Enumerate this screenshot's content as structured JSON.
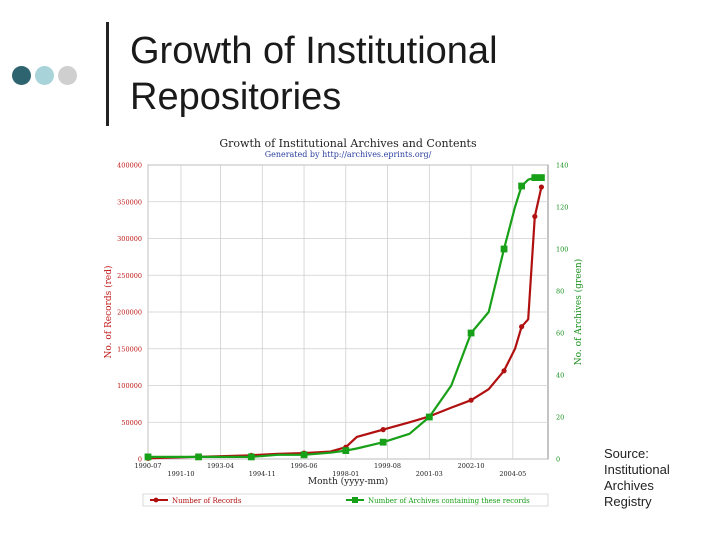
{
  "slide": {
    "title": "Growth of Institutional Repositories",
    "source_label": "Source:",
    "source_lines": [
      "Institutional",
      "Archives",
      "Registry"
    ],
    "accent_colors": [
      "#2e6470",
      "#a7d3d9",
      "#cfcfcf"
    ]
  },
  "chart_data": {
    "type": "line",
    "title": "Growth of Institutional Archives and Contents",
    "subtitle": "Generated by http://archives.eprints.org/",
    "xlabel": "Month (yyyy-mm)",
    "x_ticks": [
      "1990-07",
      "1991-10",
      "1993-04",
      "1994-11",
      "1996-06",
      "1998-01",
      "1999-08",
      "2001-03",
      "2002-10",
      "2004-05"
    ],
    "ylabel_left": "No. of Records (red)",
    "ylabel_right": "No. of Archives (green)",
    "y_left_ticks": [
      0,
      50000,
      100000,
      150000,
      200000,
      250000,
      300000,
      350000,
      400000
    ],
    "y_right_ticks": [
      0,
      20,
      40,
      60,
      80,
      100,
      120,
      140
    ],
    "y_left_lim": [
      0,
      400000
    ],
    "y_right_lim": [
      0,
      140
    ],
    "grid": true,
    "legend_position": "bottom",
    "series": [
      {
        "name": "Number of Records",
        "axis": "left",
        "color": "#b01010",
        "x": [
          "1990-07",
          "1991-06",
          "1992-06",
          "1993-06",
          "1994-06",
          "1995-06",
          "1996-06",
          "1997-06",
          "1998-01",
          "1998-06",
          "1999-06",
          "2000-06",
          "2001-03",
          "2002-01",
          "2002-10",
          "2003-06",
          "2004-01",
          "2004-06",
          "2004-09",
          "2004-12",
          "2005-03",
          "2005-06"
        ],
        "values": [
          1000,
          2000,
          3000,
          4000,
          5000,
          7000,
          8000,
          10000,
          16000,
          30000,
          40000,
          50000,
          58000,
          70000,
          80000,
          95000,
          120000,
          150000,
          180000,
          190000,
          330000,
          370000
        ]
      },
      {
        "name": "Number of Archives containing these records",
        "axis": "right",
        "color": "#18a018",
        "x": [
          "1990-07",
          "1991-06",
          "1992-06",
          "1993-06",
          "1994-06",
          "1995-06",
          "1996-06",
          "1997-06",
          "1998-01",
          "1998-06",
          "1999-06",
          "2000-06",
          "2001-03",
          "2002-01",
          "2002-10",
          "2003-06",
          "2004-01",
          "2004-06",
          "2004-09",
          "2004-12",
          "2005-03",
          "2005-06"
        ],
        "values": [
          1,
          1,
          1,
          1,
          1,
          2,
          2,
          3,
          4,
          5,
          8,
          12,
          20,
          35,
          60,
          70,
          100,
          120,
          130,
          133,
          134,
          134
        ]
      }
    ]
  }
}
